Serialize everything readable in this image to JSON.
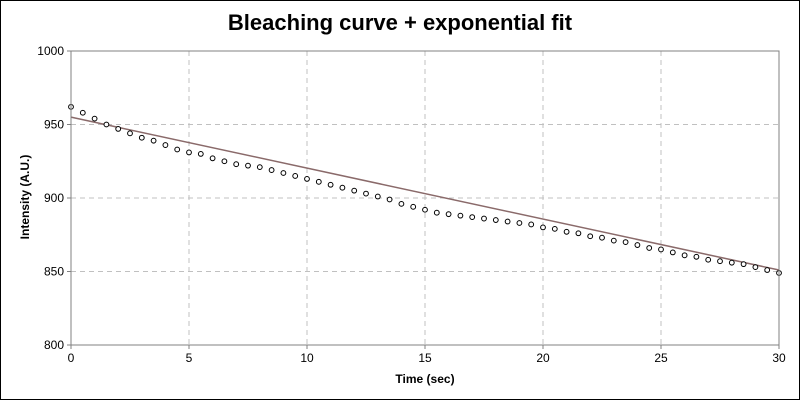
{
  "chart_data": {
    "type": "scatter",
    "title": "Bleaching curve + exponential fit",
    "xlabel": "Time (sec)",
    "ylabel": "Intensity (A.U.)",
    "xlim": [
      0,
      30
    ],
    "ylim": [
      800,
      1000
    ],
    "xticks": [
      "0",
      "5",
      "10",
      "15",
      "20",
      "25",
      "30"
    ],
    "yticks": [
      "800",
      "850",
      "900",
      "950",
      "1000"
    ],
    "grid": true,
    "legend": "none",
    "series": [
      {
        "kind": "points",
        "marker": "open-circle",
        "color": "#000000",
        "x": [
          0,
          0.5,
          1,
          1.5,
          2,
          2.5,
          3,
          3.5,
          4,
          4.5,
          5,
          5.5,
          6,
          6.5,
          7,
          7.5,
          8,
          8.5,
          9,
          9.5,
          10,
          10.5,
          11,
          11.5,
          12,
          12.5,
          13,
          13.5,
          14,
          14.5,
          15,
          15.5,
          16,
          16.5,
          17,
          17.5,
          18,
          18.5,
          19,
          19.5,
          20,
          20.5,
          21,
          21.5,
          22,
          22.5,
          23,
          23.5,
          24,
          24.5,
          25,
          25.5,
          26,
          26.5,
          27,
          27.5,
          28,
          28.5,
          29,
          29.5,
          30
        ],
        "y": [
          962,
          958,
          954,
          950,
          947,
          944,
          941,
          939,
          936,
          933,
          931,
          930,
          927,
          925,
          923,
          922,
          921,
          919,
          917,
          915,
          913,
          911,
          909,
          907,
          905,
          903,
          901,
          899,
          896,
          894,
          892,
          890,
          889,
          888,
          887,
          886,
          885,
          884,
          883,
          882,
          880,
          879,
          877,
          876,
          874,
          873,
          871,
          870,
          868,
          866,
          865,
          863,
          861,
          860,
          858,
          857,
          856,
          855,
          853,
          851,
          849
        ]
      },
      {
        "kind": "fit-line",
        "color": "#8a6a6a",
        "x": [
          0,
          30
        ],
        "y": [
          955,
          851
        ]
      }
    ]
  }
}
